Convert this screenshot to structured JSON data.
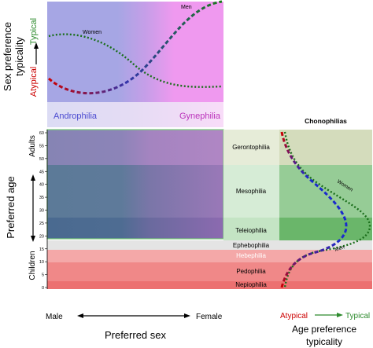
{
  "top_panel": {
    "y_axis_title_line1": "Sex preference",
    "y_axis_title_line2": "typicality",
    "typical_label": "Typical",
    "atypical_label": "Atypical",
    "curve_women_label": "Women",
    "curve_men_label": "Men"
  },
  "sex_preference_labels": {
    "androphilia": "Androphilia",
    "gynephilia": "Gynephilia"
  },
  "main_panel": {
    "y_axis_title": "Preferred age",
    "adults_label": "Adults",
    "children_label": "Children",
    "age_ticks": [
      "0",
      "5",
      "10",
      "15",
      "20",
      "25",
      "30",
      "35",
      "40",
      "45",
      "50",
      "55",
      "60"
    ],
    "x_left_label": "Male",
    "x_right_label": "Female",
    "x_axis_title": "Preferred sex"
  },
  "age_categories": {
    "gerontophilia": "Gerontophilia",
    "mesophilia": "Mesophilia",
    "teleiophilia": "Teleiophilia",
    "ephebophilia": "Ephebophilia",
    "hebephilia": "Hebephilia",
    "pedophilia": "Pedophilia",
    "nepiophilia": "Nepiophilia"
  },
  "right_panel": {
    "title": "Chonophilias",
    "curve_women_label": "Women",
    "curve_men_label": "Men",
    "atypical_label": "Atypical",
    "typical_label": "Typical",
    "x_axis_title_line1": "Age preference",
    "x_axis_title_line2": "typicality"
  },
  "colors": {
    "typical": "#2e8b2e",
    "atypical": "#cc0000",
    "women_curve": "#1a7a1a",
    "men_curve_start": "#cc0000",
    "men_curve_end": "#0000cc",
    "androphilia": "#6666cc",
    "gynephilia": "#cc44cc"
  }
}
